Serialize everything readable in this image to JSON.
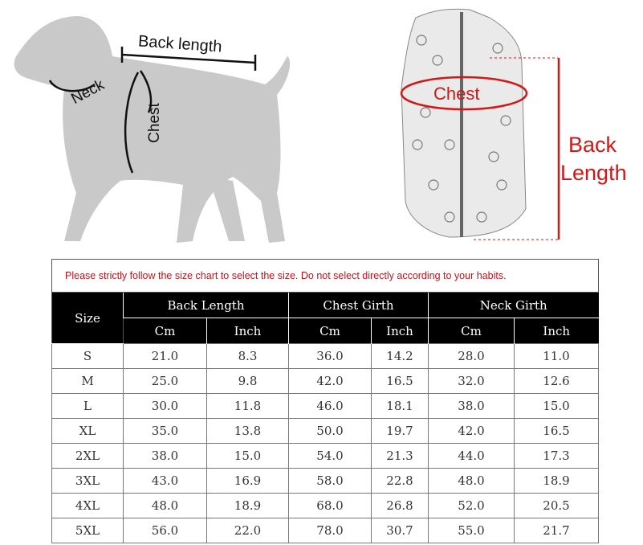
{
  "diagram": {
    "dog_labels": {
      "back_length": "Back length",
      "neck": "Neck",
      "chest": "Chest"
    },
    "jacket_labels": {
      "chest": "Chest",
      "back_length_line1": "Back",
      "back_length_line2": "Length"
    },
    "accent_color": "#d01818",
    "silhouette_color": "#c9c9c9"
  },
  "notice": "Please strictly follow the size chart to select the size. Do not select directly according to your habits.",
  "table": {
    "size_header": "Size",
    "groups": [
      "Back Length",
      "Chest Girth",
      "Neck Girth"
    ],
    "units": [
      "Cm",
      "Inch",
      "Cm",
      "Inch",
      "Cm",
      "Inch"
    ],
    "rows": [
      [
        "S",
        "21.0",
        "8.3",
        "36.0",
        "14.2",
        "28.0",
        "11.0"
      ],
      [
        "M",
        "25.0",
        "9.8",
        "42.0",
        "16.5",
        "32.0",
        "12.6"
      ],
      [
        "L",
        "30.0",
        "11.8",
        "46.0",
        "18.1",
        "38.0",
        "15.0"
      ],
      [
        "XL",
        "35.0",
        "13.8",
        "50.0",
        "19.7",
        "42.0",
        "16.5"
      ],
      [
        "2XL",
        "38.0",
        "15.0",
        "54.0",
        "21.3",
        "44.0",
        "17.3"
      ],
      [
        "3XL",
        "43.0",
        "16.9",
        "58.0",
        "22.8",
        "48.0",
        "18.9"
      ],
      [
        "4XL",
        "48.0",
        "18.9",
        "68.0",
        "26.8",
        "52.0",
        "20.5"
      ],
      [
        "5XL",
        "56.0",
        "22.0",
        "78.0",
        "30.7",
        "55.0",
        "21.7"
      ]
    ]
  }
}
